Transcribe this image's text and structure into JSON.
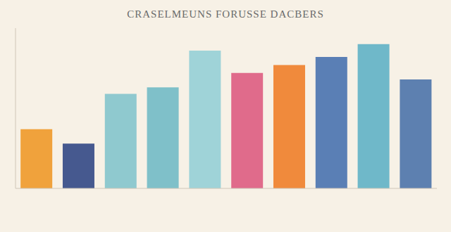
{
  "chart_data": {
    "type": "bar",
    "title": "CRASELMEUNS FORUSSE DACBERS",
    "categories": [
      null,
      null,
      null,
      null,
      null,
      null,
      null,
      null,
      null,
      null
    ],
    "values": [
      37,
      28,
      59,
      63,
      86,
      72,
      77,
      82,
      90,
      68
    ],
    "colors": [
      "#f0a23c",
      "#46598f",
      "#8fc9cf",
      "#7fc0c9",
      "#9fd3d8",
      "#e06b8b",
      "#f08a3c",
      "#5a7fb5",
      "#6fb8c9",
      "#5d80b0"
    ],
    "ylim": [
      0,
      100
    ],
    "tick_labels": false,
    "grid": false
  }
}
